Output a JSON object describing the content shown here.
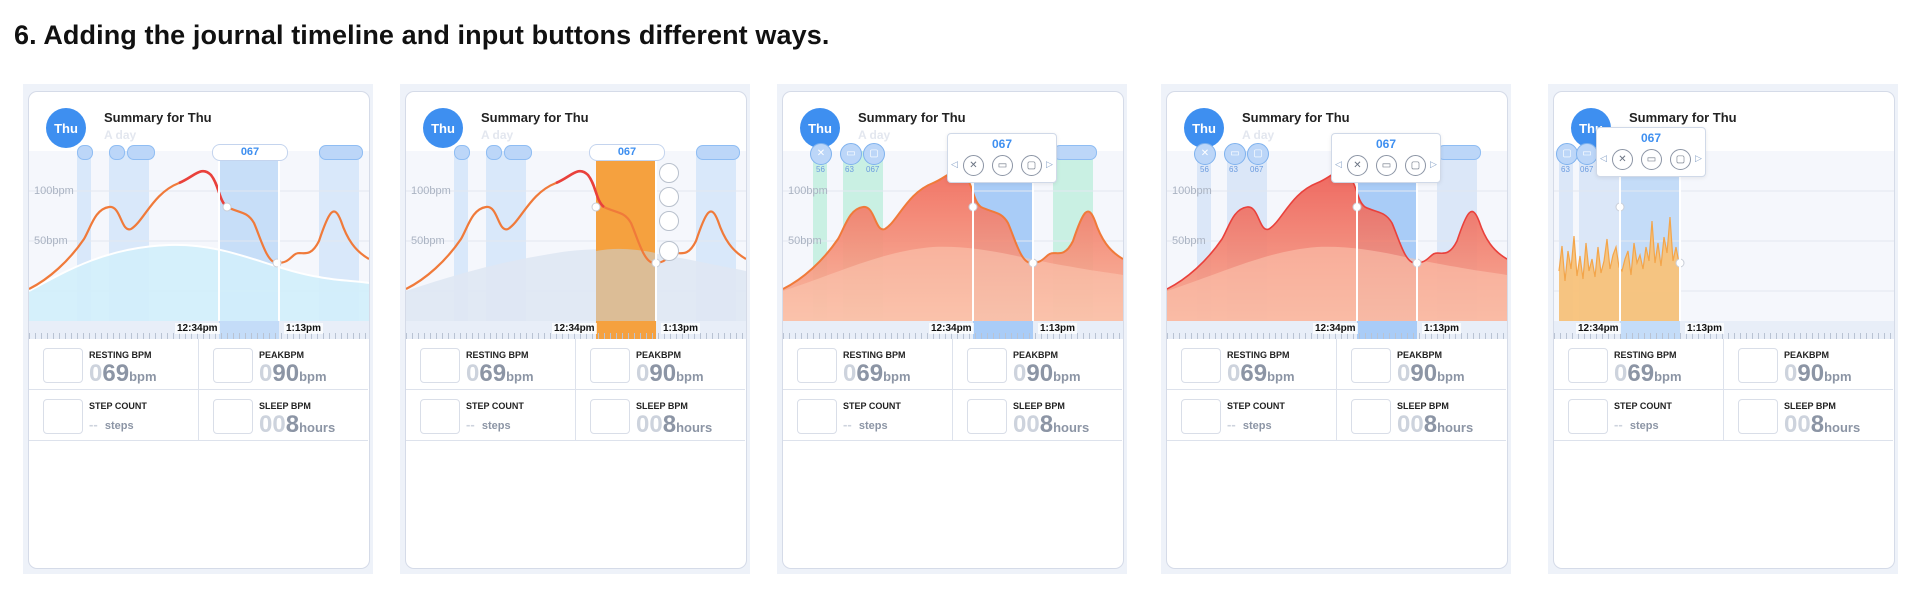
{
  "page": {
    "title": "6. Adding the journal timeline and input buttons different ways."
  },
  "panels": [
    {
      "avatar": "Thu",
      "summary_title": "Summary for Thu",
      "summary_subtitle": "A day",
      "grid_labels": [
        "100bpm",
        "50bpm"
      ],
      "selected_value": "067",
      "time_start": "12:34pm",
      "time_end": "1:13pm",
      "stats": [
        {
          "label": "RESTING BPM",
          "zero": "0",
          "value": "69",
          "unit": "bpm"
        },
        {
          "label": "PEAKBPM",
          "zero": "0",
          "value": "90",
          "unit": "bpm"
        },
        {
          "label": "STEP COUNT",
          "zero": "--",
          "value": "",
          "unit": "steps"
        },
        {
          "label": "SLEEP BPM",
          "zero": "00",
          "value": "8",
          "unit": "hours"
        }
      ]
    },
    {
      "avatar": "Thu",
      "summary_title": "Summary for Thu",
      "summary_subtitle": "A day",
      "grid_labels": [
        "100bpm",
        "50bpm"
      ],
      "selected_value": "067",
      "time_start": "12:34pm",
      "time_end": "1:13pm",
      "stats": [
        {
          "label": "RESTING BPM",
          "zero": "0",
          "value": "69",
          "unit": "bpm"
        },
        {
          "label": "PEAKBPM",
          "zero": "0",
          "value": "90",
          "unit": "bpm"
        },
        {
          "label": "STEP COUNT",
          "zero": "--",
          "value": "",
          "unit": "steps"
        },
        {
          "label": "SLEEP BPM",
          "zero": "00",
          "value": "8",
          "unit": "hours"
        }
      ]
    },
    {
      "avatar": "Thu",
      "summary_title": "Summary for Thu",
      "summary_subtitle": "A day",
      "grid_labels": [
        "100bpm",
        "50bpm"
      ],
      "selected_value": "067",
      "marker_labels": [
        "56",
        "63",
        "067"
      ],
      "time_start": "12:34pm",
      "time_end": "1:13pm",
      "stats": [
        {
          "label": "RESTING BPM",
          "zero": "0",
          "value": "69",
          "unit": "bpm"
        },
        {
          "label": "PEAKBPM",
          "zero": "0",
          "value": "90",
          "unit": "bpm"
        },
        {
          "label": "STEP COUNT",
          "zero": "--",
          "value": "",
          "unit": "steps"
        },
        {
          "label": "SLEEP BPM",
          "zero": "00",
          "value": "8",
          "unit": "hours"
        }
      ]
    },
    {
      "avatar": "Thu",
      "summary_title": "Summary for Thu",
      "summary_subtitle": "A day",
      "grid_labels": [
        "100bpm",
        "50bpm"
      ],
      "selected_value": "067",
      "marker_labels": [
        "56",
        "63",
        "067"
      ],
      "time_start": "12:34pm",
      "time_end": "1:13pm",
      "stats": [
        {
          "label": "RESTING BPM",
          "zero": "0",
          "value": "69",
          "unit": "bpm"
        },
        {
          "label": "PEAKBPM",
          "zero": "0",
          "value": "90",
          "unit": "bpm"
        },
        {
          "label": "STEP COUNT",
          "zero": "--",
          "value": "",
          "unit": "steps"
        },
        {
          "label": "SLEEP BPM",
          "zero": "00",
          "value": "8",
          "unit": "hours"
        }
      ]
    },
    {
      "avatar": "Thu",
      "summary_title": "Summary for Thu",
      "grid_labels": [],
      "selected_value": "067",
      "marker_labels": [
        "63",
        "067"
      ],
      "time_start": "12:34pm",
      "time_end": "1:13pm",
      "stats": [
        {
          "label": "RESTING BPM",
          "zero": "0",
          "value": "69",
          "unit": "bpm"
        },
        {
          "label": "PEAKBPM",
          "zero": "0",
          "value": "90",
          "unit": "bpm"
        },
        {
          "label": "STEP COUNT",
          "zero": "--",
          "value": "",
          "unit": "steps"
        },
        {
          "label": "SLEEP BPM",
          "zero": "00",
          "value": "8",
          "unit": "hours"
        }
      ]
    }
  ],
  "icons": [
    "fork-knife-icon",
    "pill-icon",
    "cup-icon",
    "circle-icon"
  ],
  "colors": {
    "accent": "#3e8ff0",
    "line": "#f07a3a",
    "peak": "#e9413c",
    "selection": "#f5a13f",
    "mint": "#c9f0e3"
  }
}
